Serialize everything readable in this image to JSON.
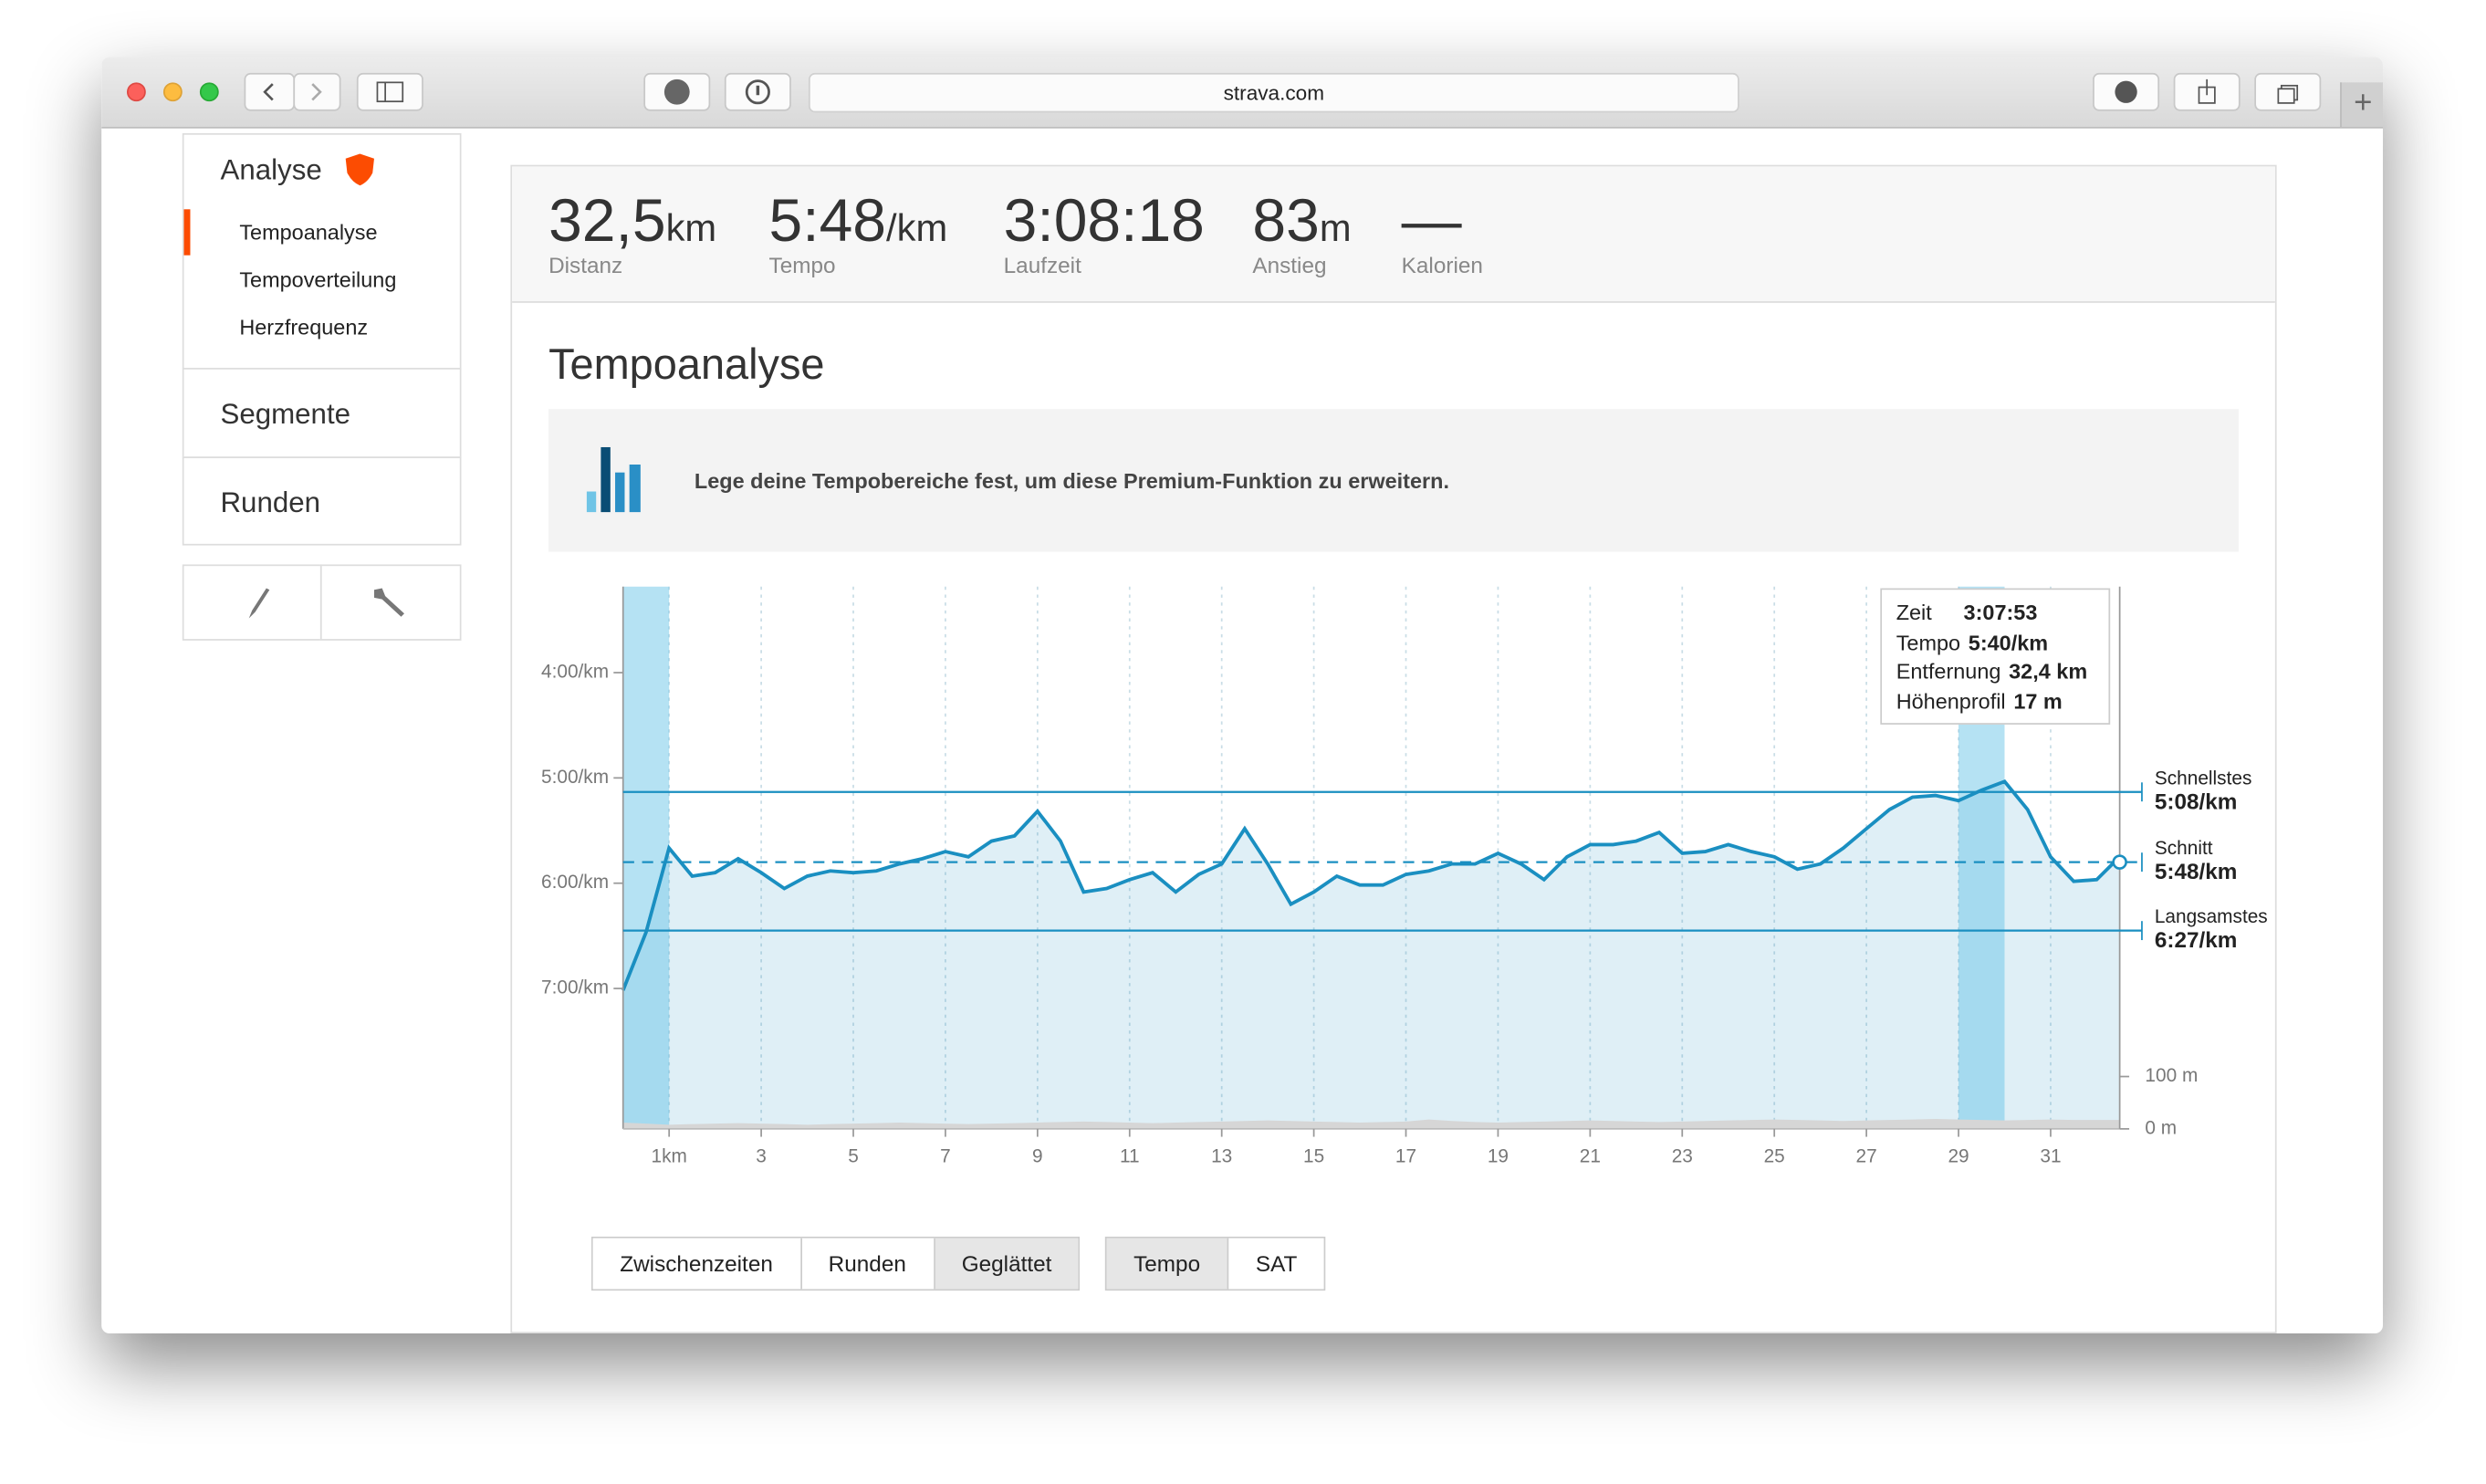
{
  "browser": {
    "url": "strava.com"
  },
  "sidebar": {
    "sections": [
      {
        "title": "Analyse",
        "items": [
          "Tempoanalyse",
          "Tempoverteilung",
          "Herzfrequenz"
        ]
      },
      {
        "title": "Segmente"
      },
      {
        "title": "Runden"
      }
    ]
  },
  "stats": [
    {
      "value": "32,5",
      "unit": "km",
      "label": "Distanz"
    },
    {
      "value": "5:48",
      "unit": "/km",
      "label": "Tempo"
    },
    {
      "value": "3:08:18",
      "label": "Laufzeit"
    },
    {
      "value": "83",
      "unit": "m",
      "label": "Anstieg"
    },
    {
      "value": "—",
      "label": "Kalorien"
    }
  ],
  "page_title": "Tempoanalyse",
  "banner": "Lege deine Tempobereiche fest, um diese Premium-Funktion zu erweitern.",
  "chart_data": {
    "type": "line",
    "x": [
      0,
      0.5,
      1,
      1.5,
      2,
      2.5,
      3,
      3.5,
      4,
      4.5,
      5,
      5.5,
      6,
      6.5,
      7,
      7.5,
      8,
      8.5,
      9,
      9.5,
      10,
      10.5,
      11,
      11.5,
      12,
      12.5,
      13,
      13.5,
      14,
      14.5,
      15,
      15.5,
      16,
      16.5,
      17,
      17.5,
      18,
      18.5,
      19,
      19.5,
      20,
      20.5,
      21,
      21.5,
      22,
      22.5,
      23,
      23.5,
      24,
      24.5,
      25,
      25.5,
      26,
      26.5,
      27,
      27.5,
      28,
      28.5,
      29,
      29.5,
      30,
      30.5,
      31,
      31.5,
      32,
      32.5
    ],
    "series": [
      {
        "color": "#1a8fc1",
        "values": [
          421,
          388,
          340,
          356,
          354,
          346,
          354,
          363,
          356,
          353,
          354,
          353,
          349,
          346,
          342,
          345,
          336,
          333,
          319,
          336,
          365,
          363,
          358,
          354,
          365,
          355,
          349,
          329,
          349,
          372,
          365,
          356,
          361,
          361,
          355,
          353,
          349,
          349,
          343,
          349,
          358,
          345,
          338,
          338,
          336,
          331,
          343,
          342,
          338,
          342,
          345,
          352,
          349,
          340,
          329,
          318,
          311,
          310,
          313,
          307,
          302,
          318,
          345,
          359,
          358,
          345
        ]
      },
      {
        "color": "#d6d6d6",
        "axis": "y2",
        "values": [
          12,
          10,
          8,
          9,
          10,
          11,
          10,
          9,
          8,
          9,
          10,
          11,
          12,
          11,
          10,
          9,
          10,
          11,
          12,
          13,
          14,
          13,
          12,
          11,
          12,
          13,
          14,
          15,
          16,
          15,
          14,
          13,
          12,
          13,
          14,
          18,
          15,
          13,
          12,
          13,
          14,
          15,
          16,
          15,
          14,
          13,
          14,
          15,
          16,
          17,
          18,
          17,
          16,
          15,
          16,
          17,
          18,
          19,
          18,
          17,
          16,
          17,
          18,
          17,
          17,
          17
        ]
      }
    ],
    "xlim": [
      0,
      32.5
    ],
    "xticks": [
      {
        "value": 1,
        "label": "1km"
      },
      3,
      5,
      7,
      9,
      11,
      13,
      15,
      17,
      19,
      21,
      23,
      25,
      27,
      29,
      31
    ],
    "ylim": [
      191,
      500
    ],
    "yticks": [
      {
        "value": 240,
        "label": "4:00/km"
      },
      {
        "value": 300,
        "label": "5:00/km"
      },
      {
        "value": 360,
        "label": "6:00/km"
      },
      {
        "value": 420,
        "label": "7:00/km"
      }
    ],
    "y2lim": [
      0,
      1036
    ],
    "y2ticks": [
      {
        "value": 0,
        "label": "0 m"
      },
      {
        "value": 100,
        "label": "100 m"
      }
    ],
    "reference_lines": [
      {
        "name": "Schnellstes",
        "value": 308,
        "label": "5:08/km"
      },
      {
        "name": "Schnitt",
        "value": 348,
        "label": "5:48/km"
      },
      {
        "name": "Langsamstes",
        "value": 387,
        "label": "6:27/km"
      }
    ],
    "highlights": [
      {
        "start": 0,
        "end": 1
      },
      {
        "start": 29,
        "end": 30
      }
    ],
    "grid": true
  },
  "tooltip": [
    {
      "label": "Zeit",
      "value": "3:07:53"
    },
    {
      "label": "Tempo",
      "value": "5:40/km"
    },
    {
      "label": "Entfernung",
      "value": "32,4 km"
    },
    {
      "label": "Höhenprofil",
      "value": "17 m"
    }
  ],
  "buttons": [
    [
      {
        "label": "Zwischenzeiten",
        "active": false
      },
      {
        "label": "Runden",
        "active": false
      },
      {
        "label": "Geglättet",
        "active": true
      }
    ],
    [
      {
        "label": "Tempo",
        "active": true
      },
      {
        "label": "SAT",
        "active": false
      }
    ]
  ]
}
